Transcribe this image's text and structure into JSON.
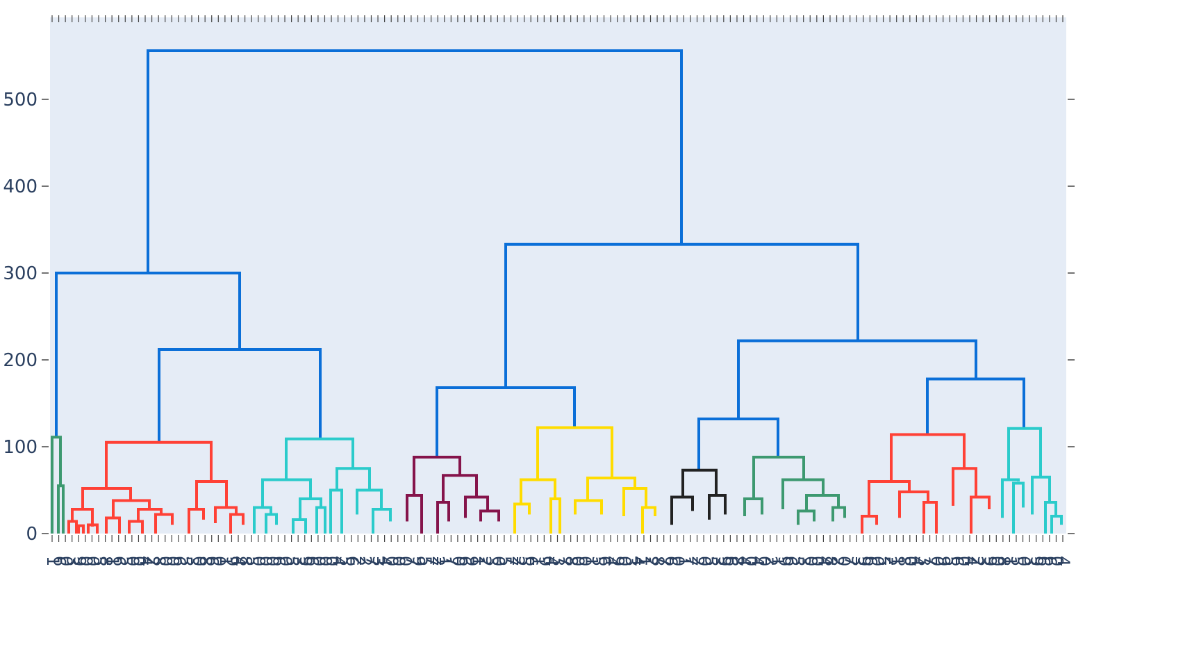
{
  "chart_data": {
    "type": "dendrogram",
    "title": "",
    "xlabel": "",
    "ylabel": "",
    "ylim": [
      0,
      580
    ],
    "yticks": [
      0,
      100,
      200,
      300,
      400,
      500
    ],
    "grid": false,
    "legend": "none",
    "colors": {
      "plot_bg": "#e5ecf6",
      "axis_text": "#2a3f5f",
      "trunk": "#0b6fd8",
      "clusters": [
        "#3d9970",
        "#ff4136",
        "#2bcbcb",
        "#85144b",
        "#ffdc00",
        "#222222",
        "#3d9970",
        "#ff4136",
        "#2bcbcb"
      ]
    },
    "leaves": [
      "1",
      "6",
      "0",
      "3",
      "9",
      "0",
      "0",
      "5",
      "8",
      "1",
      "6",
      "5",
      "0",
      "0",
      "4",
      "2",
      "8",
      "0",
      "0",
      "6",
      "5",
      "3",
      "0",
      "8",
      "6",
      "0",
      "1",
      "9",
      "4",
      "8",
      "5",
      "0",
      "0",
      "0",
      "6",
      "0",
      "5",
      "3",
      "9",
      "6",
      "0",
      "0",
      "0",
      "4",
      "5",
      "6",
      "2",
      "2",
      "7",
      "3",
      "4",
      "0",
      "0",
      "0",
      "7",
      "9",
      "5",
      "7",
      "2",
      "1",
      "7",
      "0",
      "6",
      "9",
      "1",
      "2",
      "3",
      "0",
      "5",
      "7",
      "2",
      "5",
      "6",
      "1",
      "9",
      "4",
      "3",
      "7",
      "8",
      "0",
      "0",
      "1",
      "5",
      "6",
      "4",
      "9",
      "0",
      "3",
      "4",
      "1",
      "2",
      "8",
      "7",
      "6",
      "0",
      "1",
      "7",
      "2",
      "0",
      "5",
      "3",
      "9",
      "6",
      "8",
      "4",
      "0",
      "4",
      "0",
      "2",
      "1",
      "9",
      "6",
      "5",
      "3",
      "0",
      "0",
      "4",
      "8",
      "2",
      "0",
      "7",
      "3",
      "9",
      "6",
      "0",
      "5",
      "2",
      "1",
      "8",
      "0",
      "4",
      "3",
      "7",
      "0",
      "9",
      "5",
      "6",
      "0",
      "4",
      "2",
      "3",
      "9",
      "0",
      "8",
      "1",
      "5",
      "0",
      "3",
      "9",
      "6",
      "6",
      "0",
      "4"
    ],
    "links": [
      {
        "x": [
          213,
          213,
          981,
          981
        ],
        "y": [
          300,
          556,
          556,
          333
        ],
        "color": "trunk"
      },
      {
        "x": [
          81,
          81,
          345,
          345
        ],
        "y": [
          110,
          300,
          300,
          212
        ],
        "color": "trunk"
      },
      {
        "x": [
          229,
          229,
          461,
          461
        ],
        "y": [
          105,
          212,
          212,
          109
        ],
        "color": "trunk"
      },
      {
        "x": [
          728,
          728,
          1235,
          1235
        ],
        "y": [
          168,
          333,
          333,
          222
        ],
        "color": "trunk"
      },
      {
        "x": [
          629,
          629,
          827,
          827
        ],
        "y": [
          88,
          168,
          168,
          122
        ],
        "color": "trunk"
      },
      {
        "x": [
          1063,
          1063,
          1405,
          1405
        ],
        "y": [
          132,
          222,
          222,
          178
        ],
        "color": "trunk"
      },
      {
        "x": [
          1006,
          1006,
          1120,
          1120
        ],
        "y": [
          73,
          132,
          132,
          88
        ],
        "color": "trunk"
      },
      {
        "x": [
          1335,
          1335,
          1474,
          1474
        ],
        "y": [
          114,
          178,
          178,
          121
        ],
        "color": "trunk"
      },
      {
        "x": [
          75,
          75,
          87,
          87
        ],
        "y": [
          0,
          111,
          111,
          55
        ],
        "color": 0
      },
      {
        "x": [
          84,
          84,
          91,
          91
        ],
        "y": [
          0,
          55,
          55,
          0
        ],
        "color": 0
      },
      {
        "x": [
          153,
          153,
          304,
          304
        ],
        "y": [
          52,
          105,
          105,
          60
        ],
        "color": 1
      },
      {
        "x": [
          119,
          119,
          188,
          188
        ],
        "y": [
          28,
          52,
          52,
          38
        ],
        "color": 1
      },
      {
        "x": [
          104,
          104,
          133,
          133
        ],
        "y": [
          14,
          28,
          28,
          8
        ],
        "color": 1
      },
      {
        "x": [
          99,
          99,
          110,
          110
        ],
        "y": [
          0,
          14,
          14,
          0
        ],
        "color": 1
      },
      {
        "x": [
          113,
          113,
          120,
          120
        ],
        "y": [
          0,
          9,
          9,
          0
        ],
        "color": 1
      },
      {
        "x": [
          127,
          127,
          140,
          140
        ],
        "y": [
          0,
          10,
          10,
          0
        ],
        "color": 1
      },
      {
        "x": [
          163,
          163,
          215,
          215
        ],
        "y": [
          18,
          38,
          38,
          28
        ],
        "color": 1
      },
      {
        "x": [
          153,
          153,
          172,
          172
        ],
        "y": [
          0,
          18,
          18,
          0
        ],
        "color": 1
      },
      {
        "x": [
          199,
          199,
          232,
          232
        ],
        "y": [
          14,
          28,
          28,
          22
        ],
        "color": 1
      },
      {
        "x": [
          186,
          186,
          205,
          205
        ],
        "y": [
          0,
          14,
          14,
          0
        ],
        "color": 1
      },
      {
        "x": [
          224,
          224,
          248,
          248
        ],
        "y": [
          0,
          22,
          22,
          10
        ],
        "color": 1
      },
      {
        "x": [
          283,
          283,
          326,
          326
        ],
        "y": [
          28,
          60,
          60,
          30
        ],
        "color": 1
      },
      {
        "x": [
          272,
          272,
          293,
          293
        ],
        "y": [
          0,
          28,
          28,
          16
        ],
        "color": 1
      },
      {
        "x": [
          310,
          310,
          340,
          340
        ],
        "y": [
          12,
          30,
          30,
          22
        ],
        "color": 1
      },
      {
        "x": [
          332,
          332,
          350,
          350
        ],
        "y": [
          0,
          22,
          22,
          10
        ],
        "color": 1
      },
      {
        "x": [
          412,
          412,
          508,
          508
        ],
        "y": [
          62,
          109,
          109,
          75
        ],
        "color": 2
      },
      {
        "x": [
          378,
          378,
          447,
          447
        ],
        "y": [
          30,
          62,
          62,
          40
        ],
        "color": 2
      },
      {
        "x": [
          366,
          366,
          390,
          390
        ],
        "y": [
          0,
          30,
          30,
          22
        ],
        "color": 2
      },
      {
        "x": [
          383,
          383,
          398,
          398
        ],
        "y": [
          0,
          22,
          22,
          10
        ],
        "color": 2
      },
      {
        "x": [
          432,
          432,
          462,
          462
        ],
        "y": [
          16,
          40,
          40,
          30
        ],
        "color": 2
      },
      {
        "x": [
          422,
          422,
          440,
          440
        ],
        "y": [
          0,
          16,
          16,
          0
        ],
        "color": 2
      },
      {
        "x": [
          456,
          456,
          468,
          468
        ],
        "y": [
          0,
          30,
          30,
          0
        ],
        "color": 2
      },
      {
        "x": [
          485,
          485,
          532,
          532
        ],
        "y": [
          50,
          75,
          75,
          50
        ],
        "color": 2
      },
      {
        "x": [
          476,
          476,
          492,
          492
        ],
        "y": [
          0,
          50,
          50,
          0
        ],
        "color": 2
      },
      {
        "x": [
          514,
          514,
          549,
          549
        ],
        "y": [
          22,
          50,
          50,
          28
        ],
        "color": 2
      },
      {
        "x": [
          537,
          537,
          562,
          562
        ],
        "y": [
          0,
          28,
          28,
          14
        ],
        "color": 2
      },
      {
        "x": [
          596,
          596,
          662,
          662
        ],
        "y": [
          44,
          88,
          88,
          67
        ],
        "color": 3
      },
      {
        "x": [
          586,
          586,
          607,
          607
        ],
        "y": [
          14,
          44,
          44,
          0
        ],
        "color": 3
      },
      {
        "x": [
          638,
          638,
          686,
          686
        ],
        "y": [
          36,
          67,
          67,
          42
        ],
        "color": 3
      },
      {
        "x": [
          630,
          630,
          646,
          646
        ],
        "y": [
          0,
          36,
          36,
          14
        ],
        "color": 3
      },
      {
        "x": [
          670,
          670,
          702,
          702
        ],
        "y": [
          18,
          42,
          42,
          26
        ],
        "color": 3
      },
      {
        "x": [
          692,
          692,
          718,
          718
        ],
        "y": [
          14,
          26,
          26,
          14
        ],
        "color": 3
      },
      {
        "x": [
          774,
          774,
          881,
          881
        ],
        "y": [
          62,
          122,
          122,
          64
        ],
        "color": 4
      },
      {
        "x": [
          750,
          750,
          799,
          799
        ],
        "y": [
          34,
          62,
          62,
          40
        ],
        "color": 4
      },
      {
        "x": [
          741,
          741,
          762,
          762
        ],
        "y": [
          0,
          34,
          34,
          22
        ],
        "color": 4
      },
      {
        "x": [
          793,
          793,
          806,
          806
        ],
        "y": [
          0,
          40,
          40,
          0
        ],
        "color": 4
      },
      {
        "x": [
          846,
          846,
          914,
          914
        ],
        "y": [
          38,
          64,
          64,
          52
        ],
        "color": 4
      },
      {
        "x": [
          828,
          828,
          866,
          866
        ],
        "y": [
          22,
          38,
          38,
          22
        ],
        "color": 4
      },
      {
        "x": [
          898,
          898,
          930,
          930
        ],
        "y": [
          20,
          52,
          52,
          30
        ],
        "color": 4
      },
      {
        "x": [
          925,
          925,
          943,
          943
        ],
        "y": [
          0,
          30,
          30,
          20
        ],
        "color": 4
      },
      {
        "x": [
          983,
          983,
          1031,
          1031
        ],
        "y": [
          42,
          73,
          73,
          44
        ],
        "color": 5
      },
      {
        "x": [
          967,
          967,
          997,
          997
        ],
        "y": [
          10,
          42,
          42,
          26
        ],
        "color": 5
      },
      {
        "x": [
          1021,
          1021,
          1044,
          1044
        ],
        "y": [
          16,
          44,
          44,
          22
        ],
        "color": 5
      },
      {
        "x": [
          1085,
          1085,
          1157,
          1157
        ],
        "y": [
          40,
          88,
          88,
          62
        ],
        "color": 6
      },
      {
        "x": [
          1072,
          1072,
          1097,
          1097
        ],
        "y": [
          20,
          40,
          40,
          22
        ],
        "color": 6
      },
      {
        "x": [
          1127,
          1127,
          1185,
          1185
        ],
        "y": [
          28,
          62,
          62,
          44
        ],
        "color": 6
      },
      {
        "x": [
          1161,
          1161,
          1207,
          1207
        ],
        "y": [
          26,
          44,
          44,
          30
        ],
        "color": 6
      },
      {
        "x": [
          1149,
          1149,
          1172,
          1172
        ],
        "y": [
          10,
          26,
          26,
          14
        ],
        "color": 6
      },
      {
        "x": [
          1199,
          1199,
          1216,
          1216
        ],
        "y": [
          14,
          30,
          30,
          18
        ],
        "color": 6
      },
      {
        "x": [
          1283,
          1283,
          1388,
          1388
        ],
        "y": [
          60,
          114,
          114,
          75
        ],
        "color": 7
      },
      {
        "x": [
          1251,
          1251,
          1309,
          1309
        ],
        "y": [
          20,
          60,
          60,
          48
        ],
        "color": 7
      },
      {
        "x": [
          1241,
          1241,
          1262,
          1262
        ],
        "y": [
          0,
          20,
          20,
          10
        ],
        "color": 7
      },
      {
        "x": [
          1295,
          1295,
          1336,
          1336
        ],
        "y": [
          18,
          48,
          48,
          36
        ],
        "color": 7
      },
      {
        "x": [
          1330,
          1330,
          1348,
          1348
        ],
        "y": [
          0,
          36,
          36,
          0
        ],
        "color": 7
      },
      {
        "x": [
          1372,
          1372,
          1405,
          1405
        ],
        "y": [
          32,
          75,
          75,
          42
        ],
        "color": 7
      },
      {
        "x": [
          1398,
          1398,
          1424,
          1424
        ],
        "y": [
          0,
          42,
          42,
          28
        ],
        "color": 7
      },
      {
        "x": [
          1452,
          1452,
          1498,
          1498
        ],
        "y": [
          62,
          121,
          121,
          65
        ],
        "color": 8
      },
      {
        "x": [
          1443,
          1443,
          1466,
          1466
        ],
        "y": [
          18,
          62,
          62,
          60
        ],
        "color": 8
      },
      {
        "x": [
          1459,
          1459,
          1473,
          1473
        ],
        "y": [
          0,
          58,
          58,
          30
        ],
        "color": 8
      },
      {
        "x": [
          1486,
          1486,
          1511,
          1511
        ],
        "y": [
          22,
          65,
          65,
          36
        ],
        "color": 8
      },
      {
        "x": [
          1505,
          1505,
          1520,
          1520
        ],
        "y": [
          0,
          36,
          36,
          20
        ],
        "color": 8
      },
      {
        "x": [
          1514,
          1514,
          1528,
          1528
        ],
        "y": [
          0,
          20,
          20,
          10
        ],
        "color": 8
      }
    ],
    "cluster_ranges": [
      [
        72,
        92
      ],
      [
        95,
        356
      ],
      [
        364,
        573
      ],
      [
        580,
        733
      ],
      [
        738,
        955
      ],
      [
        960,
        1053
      ],
      [
        1060,
        1233
      ],
      [
        1237,
        1435
      ],
      [
        1440,
        1532
      ]
    ]
  }
}
